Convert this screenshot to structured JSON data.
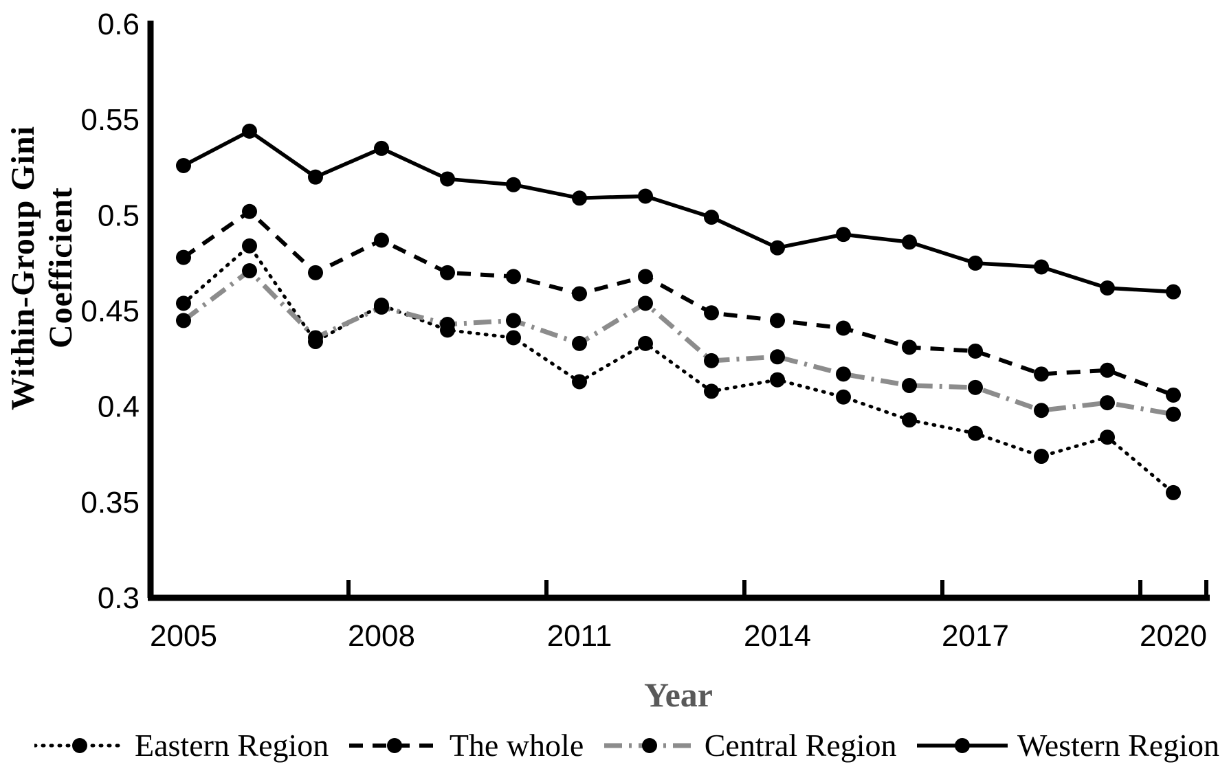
{
  "chart_data": {
    "type": "line",
    "title": "",
    "xlabel": "Year",
    "ylabel": "Within-Group Gini Coefficient",
    "x": [
      2005,
      2006,
      2007,
      2008,
      2009,
      2010,
      2011,
      2012,
      2013,
      2014,
      2015,
      2016,
      2017,
      2018,
      2019,
      2020
    ],
    "xtick_labels": [
      "2005",
      "2008",
      "2011",
      "2014",
      "2017",
      "2020"
    ],
    "ytick_labels": [
      "0.6",
      "0.55",
      "0.5",
      "0.45",
      "0.4",
      "0.35",
      "0.3"
    ],
    "ylim": [
      0.3,
      0.6
    ],
    "grid": false,
    "legend_position": "bottom",
    "series": [
      {
        "name": "Eastern Region",
        "style": "dotted",
        "values": [
          0.454,
          0.484,
          0.434,
          0.453,
          0.44,
          0.436,
          0.413,
          0.433,
          0.408,
          0.414,
          0.405,
          0.393,
          0.386,
          0.374,
          0.384,
          0.355
        ]
      },
      {
        "name": "The whole",
        "style": "dashed",
        "values": [
          0.478,
          0.502,
          0.47,
          0.487,
          0.47,
          0.468,
          0.459,
          0.468,
          0.449,
          0.445,
          0.441,
          0.431,
          0.429,
          0.417,
          0.419,
          0.406
        ]
      },
      {
        "name": "Central Region",
        "style": "dashdot-gray",
        "values": [
          0.445,
          0.471,
          0.436,
          0.452,
          0.443,
          0.445,
          0.433,
          0.454,
          0.424,
          0.426,
          0.417,
          0.411,
          0.41,
          0.398,
          0.402,
          0.396
        ]
      },
      {
        "name": "Western Region",
        "style": "solid",
        "values": [
          0.526,
          0.544,
          0.52,
          0.535,
          0.519,
          0.516,
          0.509,
          0.51,
          0.499,
          0.483,
          0.49,
          0.486,
          0.475,
          0.473,
          0.462,
          0.46
        ]
      }
    ]
  },
  "colors": {
    "series_line": "#000000",
    "central_line_gray": "#8c8c8c",
    "marker_fill": "#000000",
    "axis": "#000000",
    "x_axis_title": "#595959",
    "background": "#ffffff"
  }
}
